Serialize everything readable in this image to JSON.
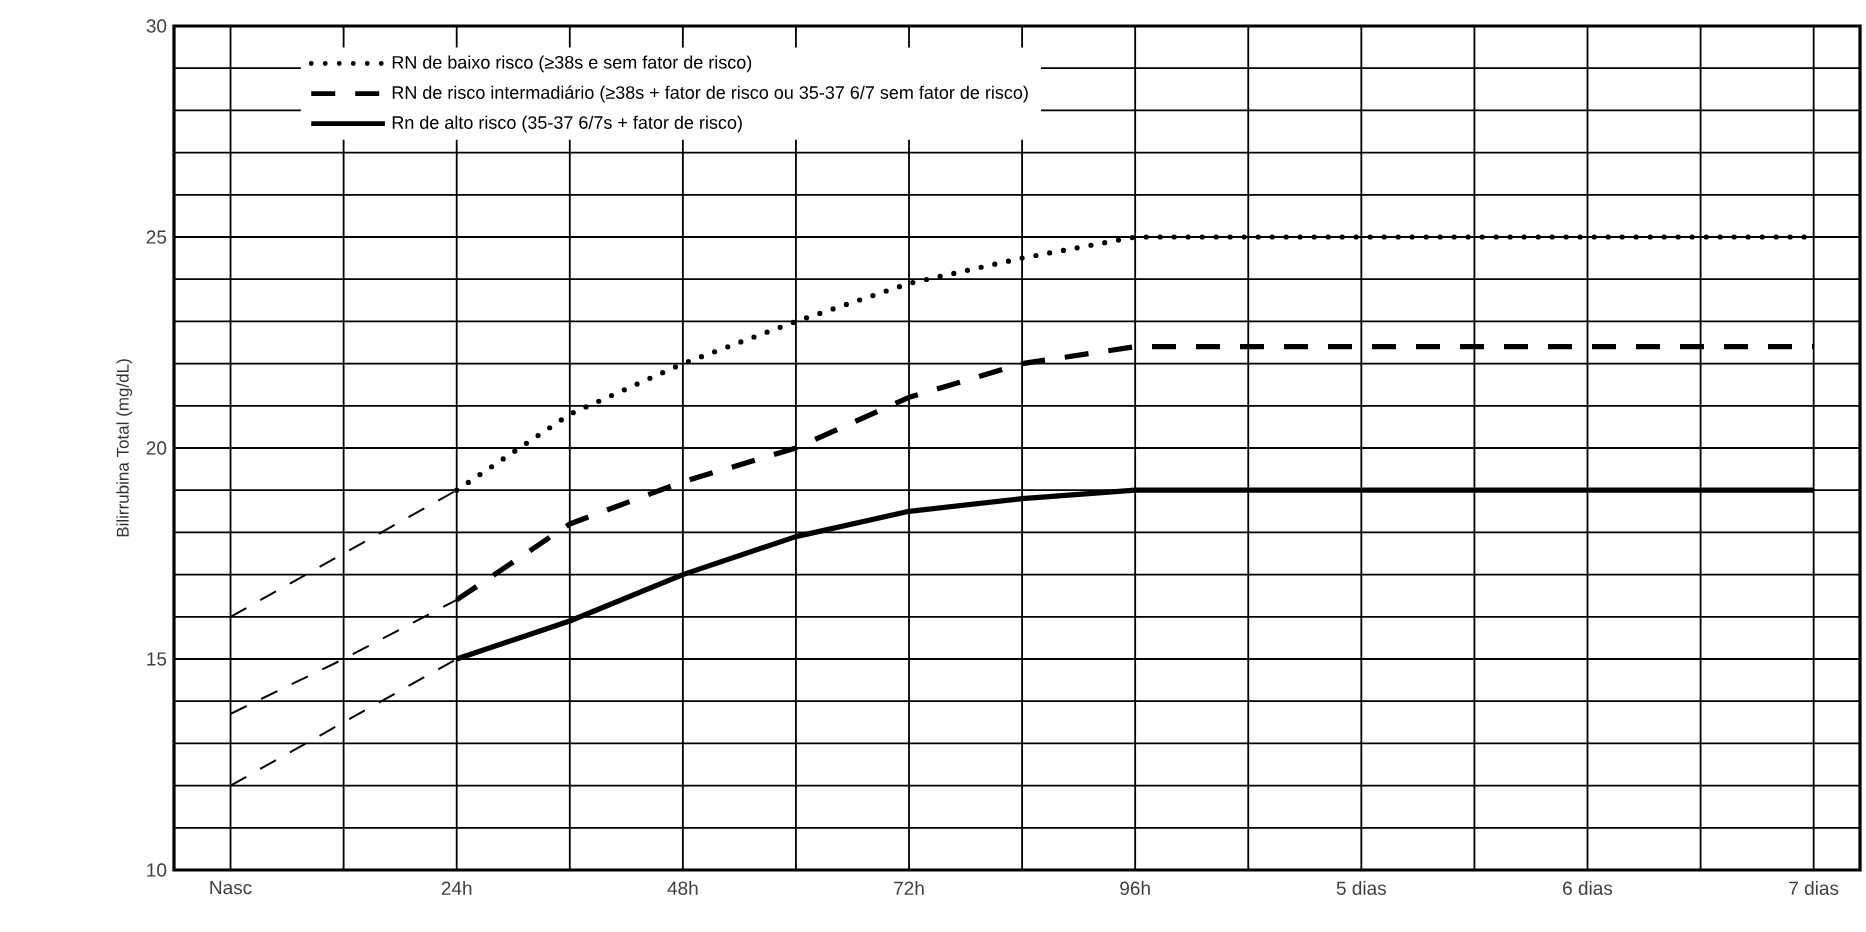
{
  "chart_data": {
    "type": "line",
    "ylabel": "Bilirrubina Total (mg/dL)",
    "categories": [
      "Nasc",
      null,
      "24h",
      null,
      "48h",
      null,
      "72h",
      null,
      "96h",
      null,
      "5 dias",
      null,
      "6 dias",
      null,
      "7 dias"
    ],
    "series": [
      {
        "name": "RN de baixo risco (≥38s e sem fator de risco)",
        "color": "#000000",
        "line_style": "dotted",
        "values": [
          null,
          null,
          19,
          20.8,
          22,
          23,
          23.9,
          24.5,
          25,
          25,
          25,
          25,
          25,
          25,
          25
        ]
      },
      {
        "name": "RN de risco intermadiário (≥38s + fator de risco ou 35-37 6/7 sem fator de risco)",
        "color": "#000000",
        "line_style": "dashed",
        "values": [
          null,
          null,
          16.4,
          18.2,
          19.2,
          20,
          21.2,
          22,
          22.4,
          22.4,
          22.4,
          22.4,
          22.4,
          22.4,
          22.4
        ]
      },
      {
        "name": "Rn de alto risco (35-37 6/7s + fator de risco)",
        "color": "#000000",
        "line_style": "solid",
        "values": [
          null,
          null,
          15,
          15.9,
          17,
          17.9,
          18.5,
          18.8,
          19,
          19,
          19,
          19,
          19,
          19,
          19
        ]
      },
      {
        "color": "#000000",
        "line_style": "dashed",
        "values": [
          16,
          17.5,
          19,
          null,
          null,
          null,
          null,
          null,
          null,
          null,
          null,
          null,
          null,
          null,
          null
        ]
      },
      {
        "color": "#000000",
        "line_style": "dashed",
        "values": [
          13.7,
          15,
          16.4,
          null,
          null,
          null,
          null,
          null,
          null,
          null,
          null,
          null,
          null,
          null,
          null
        ]
      },
      {
        "color": "#000000",
        "line_style": "dashed",
        "values": [
          12,
          13.5,
          15,
          null,
          null,
          null,
          null,
          null,
          null,
          null,
          null,
          null,
          null,
          null,
          null
        ]
      }
    ],
    "ylim": [
      10,
      30
    ],
    "yticks": [
      10,
      {
        "value": 11,
        "label": null
      },
      {
        "value": 12,
        "label": null
      },
      {
        "value": 13,
        "label": null
      },
      {
        "value": 14,
        "label": null
      },
      15,
      {
        "value": 16,
        "label": null
      },
      {
        "value": 17,
        "label": null
      },
      {
        "value": 18,
        "label": null
      },
      {
        "value": 19,
        "label": null
      },
      20,
      {
        "value": 21,
        "label": null
      },
      {
        "value": 22,
        "label": null
      },
      {
        "value": 23,
        "label": null
      },
      {
        "value": 24,
        "label": null
      },
      25,
      {
        "value": 26,
        "label": null
      },
      {
        "value": 27,
        "label": null
      },
      {
        "value": 28,
        "label": null
      },
      {
        "value": 29,
        "label": null
      },
      30
    ],
    "grid": true,
    "legend": "top left",
    "marker": "none"
  }
}
